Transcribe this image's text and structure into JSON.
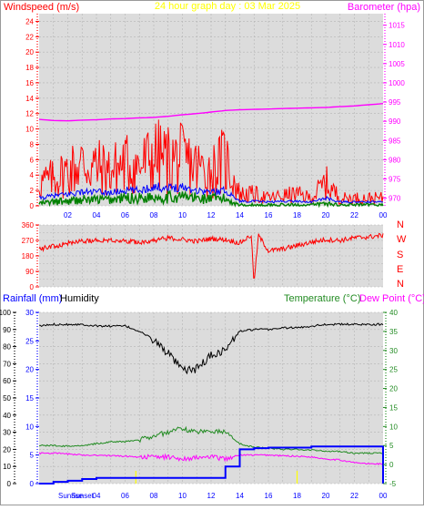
{
  "header": {
    "left_title": "Windspeed (m/s)",
    "center_title": "24 hour graph day : 03 Mar 2025",
    "right_title": "Barometer (hpa)"
  },
  "direction_panel": {
    "compass_labels": [
      "N",
      "W",
      "S",
      "E",
      "N"
    ]
  },
  "bottom_panel": {
    "rainfall_title": "Rainfall (mm)",
    "humidity_title": "Humidity",
    "temperature_title": "Temperature (°C)",
    "dewpoint_title": "Dew Point (°C)",
    "sunrise_label": "Sunrise",
    "sunset_label": "Sunset"
  },
  "colors": {
    "windspeed": "#ff0000",
    "gust": "#ff0000",
    "avg_wind": "#0000ff",
    "wind_low": "#008000",
    "barometer": "#ff00ff",
    "direction": "#ff0000",
    "humidity": "#000000",
    "temperature": "#228b22",
    "dewpoint": "#ff00ff",
    "rainfall": "#0000ff",
    "sun_markers": "#ffff00",
    "plot_bg": "#dcdcdc"
  },
  "chart_data": [
    {
      "type": "line",
      "title": "24 hour graph day : 03 Mar 2025",
      "x_tick_labels": [
        "02",
        "04",
        "06",
        "08",
        "10",
        "12",
        "14",
        "16",
        "18",
        "20",
        "22",
        "00"
      ],
      "left_axis": {
        "label": "Windspeed (m/s)",
        "ylim": [
          0,
          25
        ],
        "ticks": [
          0,
          2,
          4,
          6,
          8,
          10,
          12,
          14,
          16,
          18,
          20,
          22,
          24
        ]
      },
      "right_axis": {
        "label": "Barometer (hpa)",
        "ylim": [
          968,
          1018
        ],
        "ticks": [
          970,
          975,
          980,
          985,
          990,
          995,
          1000,
          1005,
          1010,
          1015
        ]
      },
      "x_hours": [
        0,
        1,
        2,
        3,
        4,
        5,
        6,
        7,
        8,
        9,
        10,
        11,
        12,
        13,
        14,
        15,
        16,
        17,
        18,
        19,
        20,
        21,
        22,
        23,
        24
      ],
      "series": [
        {
          "name": "Barometer",
          "axis": "right",
          "values": [
            990.5,
            990.2,
            990.1,
            990.3,
            990.4,
            990.6,
            990.7,
            990.9,
            991.0,
            991.3,
            991.7,
            992.0,
            992.4,
            992.8,
            993.0,
            993.1,
            993.2,
            993.3,
            993.4,
            993.5,
            993.6,
            993.8,
            994.0,
            994.3,
            994.6
          ]
        },
        {
          "name": "Wind Gust",
          "axis": "left",
          "values": [
            3.0,
            3.5,
            4.5,
            5.5,
            5.0,
            4.5,
            5.5,
            5.0,
            6.5,
            6.0,
            6.0,
            5.0,
            4.5,
            6.0,
            1.5,
            1.5,
            1.0,
            1.3,
            1.5,
            1.0,
            3.0,
            1.0,
            1.0,
            1.0,
            1.0
          ]
        },
        {
          "name": "Average Wind",
          "axis": "left",
          "values": [
            1.0,
            1.3,
            1.5,
            1.8,
            1.8,
            1.7,
            2.0,
            2.0,
            2.5,
            2.3,
            2.5,
            2.0,
            1.8,
            2.0,
            0.6,
            0.6,
            0.5,
            0.6,
            0.6,
            0.5,
            1.0,
            0.5,
            0.5,
            0.5,
            0.5
          ]
        },
        {
          "name": "Wind Low",
          "axis": "left",
          "values": [
            0.3,
            0.5,
            0.6,
            0.8,
            0.8,
            0.8,
            1.0,
            1.0,
            1.2,
            1.1,
            1.2,
            1.0,
            0.9,
            0.9,
            0.1,
            0.1,
            0.1,
            0.1,
            0.1,
            0.1,
            0.3,
            0.1,
            0.1,
            0.1,
            0.1
          ]
        }
      ]
    },
    {
      "type": "line",
      "title": "",
      "left_axis": {
        "label": "",
        "ylim": [
          0,
          360
        ],
        "ticks": [
          0,
          45,
          90,
          135,
          180,
          225,
          270,
          315,
          360
        ]
      },
      "x_hours": [
        0,
        1,
        2,
        3,
        4,
        5,
        6,
        7,
        8,
        9,
        10,
        11,
        12,
        13,
        14,
        14.8,
        15,
        15.3,
        16,
        17,
        18,
        19,
        20,
        21,
        22,
        23,
        24
      ],
      "series": [
        {
          "name": "Wind Direction",
          "values": [
            220,
            235,
            255,
            265,
            270,
            275,
            265,
            260,
            270,
            285,
            275,
            265,
            280,
            275,
            255,
            300,
            20,
            300,
            210,
            220,
            240,
            260,
            275,
            270,
            285,
            290,
            300
          ]
        }
      ]
    },
    {
      "type": "line",
      "title": "",
      "axes": [
        {
          "label": "Humidity",
          "ylim": [
            0,
            100
          ],
          "ticks": [
            0,
            10,
            20,
            30,
            40,
            50,
            60,
            70,
            80,
            90,
            100
          ]
        },
        {
          "label": "Rainfall (mm)",
          "ylim": [
            0,
            30
          ],
          "ticks": [
            0,
            5,
            10,
            15,
            20,
            25,
            30
          ]
        },
        {
          "label": "Temperature (°C)",
          "ylim": [
            -5,
            40
          ],
          "ticks": [
            -5,
            0,
            5,
            10,
            15,
            20,
            25,
            30,
            35,
            40
          ]
        }
      ],
      "x_tick_labels": [
        "02",
        "04",
        "06",
        "08",
        "10",
        "12",
        "14",
        "16",
        "18",
        "20",
        "22",
        "00"
      ],
      "x_hours": [
        0,
        1,
        2,
        3,
        4,
        5,
        6,
        7,
        8,
        9,
        10,
        11,
        12,
        13,
        14,
        15,
        16,
        17,
        18,
        19,
        20,
        21,
        22,
        23,
        24
      ],
      "series": [
        {
          "name": "Humidity",
          "axis": "Humidity",
          "values": [
            92,
            93,
            93,
            93,
            92,
            92,
            92,
            89,
            84,
            76,
            66,
            67,
            75,
            78,
            89,
            90,
            90,
            91,
            91,
            92,
            93,
            93,
            93,
            93,
            93
          ]
        },
        {
          "name": "Rainfall",
          "axis": "Rainfall (mm)",
          "values": [
            0,
            0.3,
            0.5,
            0.8,
            1.0,
            1.0,
            1.0,
            1.0,
            1.0,
            1.0,
            1.0,
            1.0,
            1.0,
            3.0,
            6.0,
            6.2,
            6.3,
            6.3,
            6.3,
            6.5,
            6.5,
            6.5,
            6.5,
            6.5,
            0
          ]
        },
        {
          "name": "Temperature",
          "axis": "Temperature (°C)",
          "values": [
            5.0,
            5.0,
            4.8,
            5.0,
            5.5,
            6.0,
            6.0,
            6.5,
            7.5,
            8.5,
            9.5,
            8.5,
            9.0,
            8.5,
            5.5,
            4.5,
            4.3,
            4.0,
            4.0,
            3.8,
            3.5,
            3.5,
            3.0,
            3.0,
            3.0
          ]
        },
        {
          "name": "Dew Point",
          "axis": "Temperature (°C)",
          "values": [
            3.0,
            3.0,
            2.8,
            2.5,
            2.5,
            2.3,
            2.2,
            2.0,
            2.0,
            2.0,
            1.5,
            1.8,
            2.0,
            1.5,
            2.5,
            2.5,
            2.5,
            2.3,
            2.2,
            2.0,
            1.5,
            1.2,
            0.5,
            0.2,
            0.2
          ]
        }
      ],
      "sunrise_hour": 6.75,
      "sunset_hour": 18.0
    }
  ]
}
